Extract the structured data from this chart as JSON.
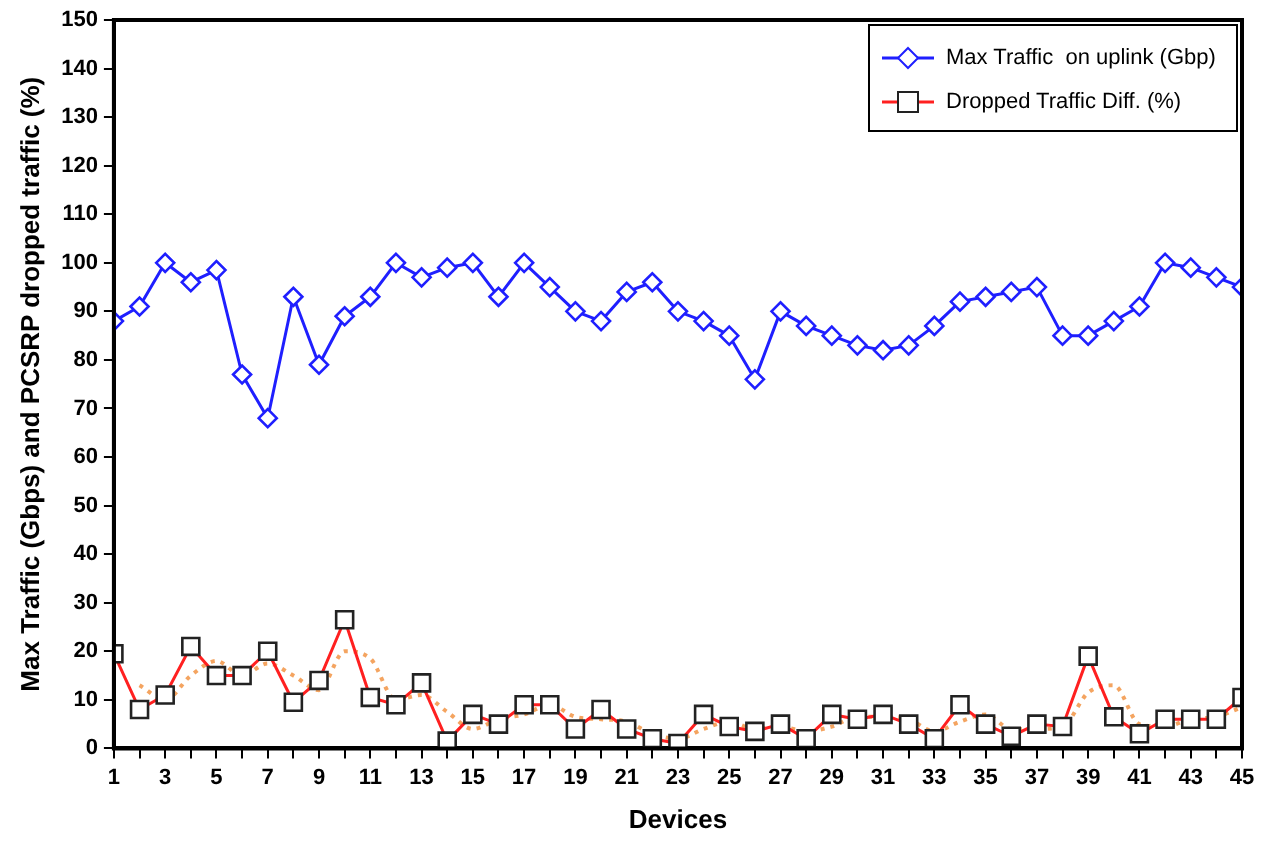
{
  "chart_data": {
    "type": "line",
    "xlabel": "Devices",
    "ylabel": "Max Traffic (Gbps) and PCSRP dropped traffic (%)",
    "x": [
      1,
      2,
      3,
      4,
      5,
      6,
      7,
      8,
      9,
      10,
      11,
      12,
      13,
      14,
      15,
      16,
      17,
      18,
      19,
      20,
      21,
      22,
      23,
      24,
      25,
      26,
      27,
      28,
      29,
      30,
      31,
      32,
      33,
      34,
      35,
      36,
      37,
      38,
      39,
      40,
      41,
      42,
      43,
      44,
      45
    ],
    "xlim": [
      1,
      45
    ],
    "xticks": [
      1,
      {
        "value": 2,
        "label": null
      },
      3,
      {
        "value": 4,
        "label": null
      },
      5,
      {
        "value": 6,
        "label": null
      },
      7,
      {
        "value": 8,
        "label": null
      },
      9,
      {
        "value": 10,
        "label": null
      },
      11,
      {
        "value": 12,
        "label": null
      },
      13,
      {
        "value": 14,
        "label": null
      },
      15,
      {
        "value": 16,
        "label": null
      },
      17,
      {
        "value": 18,
        "label": null
      },
      19,
      {
        "value": 20,
        "label": null
      },
      21,
      {
        "value": 22,
        "label": null
      },
      23,
      {
        "value": 24,
        "label": null
      },
      25,
      {
        "value": 26,
        "label": null
      },
      27,
      {
        "value": 28,
        "label": null
      },
      29,
      {
        "value": 30,
        "label": null
      },
      31,
      {
        "value": 32,
        "label": null
      },
      33,
      {
        "value": 34,
        "label": null
      },
      35,
      {
        "value": 36,
        "label": null
      },
      37,
      {
        "value": 38,
        "label": null
      },
      39,
      {
        "value": 40,
        "label": null
      },
      41,
      {
        "value": 42,
        "label": null
      },
      43,
      {
        "value": 44,
        "label": null
      },
      45
    ],
    "ylim": [
      0,
      150
    ],
    "yticks": [
      0,
      10,
      20,
      30,
      40,
      50,
      60,
      70,
      80,
      90,
      100,
      110,
      120,
      130,
      140,
      150
    ],
    "grid": false,
    "legend": "top right",
    "series": [
      {
        "name": "Max Traffic  on uplink (Gbp)",
        "color": "#1f1fff",
        "marker": "diamond",
        "line_style": "solid",
        "values": [
          88,
          91,
          100,
          96,
          98.5,
          77,
          68,
          93,
          79,
          89,
          93,
          100,
          97,
          99,
          100,
          93,
          100,
          95,
          90,
          88,
          94,
          96,
          90,
          88,
          85,
          76,
          90,
          87,
          85,
          83,
          82,
          83,
          87,
          92,
          93,
          94,
          95,
          85,
          85,
          88,
          91,
          100,
          99,
          97,
          95
        ]
      },
      {
        "name": "Dropped Traffic Diff. (%)",
        "color": "#ff2020",
        "marker": "square",
        "line_style": "solid",
        "values": [
          19.5,
          8,
          11,
          21,
          15,
          15,
          20,
          9.5,
          14,
          26.5,
          10.5,
          9,
          13.5,
          1.5,
          7,
          5,
          9,
          9,
          4,
          8,
          4,
          2,
          1,
          7,
          4.5,
          3.5,
          5,
          2,
          7,
          6,
          7,
          5,
          2,
          9,
          5,
          2.5,
          5,
          4.5,
          19,
          6.5,
          3,
          6,
          6,
          6,
          10.5
        ]
      },
      {
        "color": "#f4a460",
        "marker": "none",
        "line_style": "dotted",
        "values": [
          null,
          13,
          10,
          15,
          18,
          15,
          17.5,
          15,
          12,
          20,
          18.5,
          10,
          11,
          7.5,
          4,
          6,
          7,
          9,
          6.5,
          6,
          5.5,
          3,
          2,
          4,
          5.5,
          4,
          4.5,
          3.5,
          4.5,
          6.5,
          6.5,
          6,
          3.5,
          5.5,
          7,
          4,
          4,
          4.5,
          11.5,
          13,
          5,
          4.5,
          6,
          6.5,
          8.5
        ]
      }
    ]
  }
}
